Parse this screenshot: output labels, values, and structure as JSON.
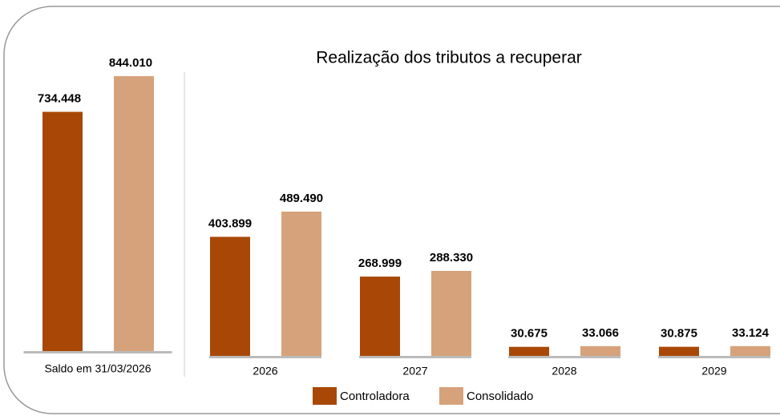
{
  "chart_data": [
    {
      "type": "bar",
      "categories": [
        "Saldo em 31/03/2026"
      ],
      "series": [
        {
          "color": "#a94806",
          "values": [
            734448
          ],
          "value_labels": [
            "734.448"
          ]
        },
        {
          "color": "#d6a27b",
          "values": [
            844010
          ],
          "value_labels": [
            "844.010"
          ]
        }
      ]
    },
    {
      "type": "bar",
      "title": "Realização dos tributos a recuperar",
      "categories": [
        "2026",
        "2027",
        "2028",
        "2029"
      ],
      "series": [
        {
          "name": "Controladora",
          "color": "#a94806",
          "values": [
            403899,
            268999,
            30675,
            30875
          ],
          "value_labels": [
            "403.899",
            "268.999",
            "30.675",
            "30.875"
          ]
        },
        {
          "name": "Consolidado",
          "color": "#d6a27b",
          "values": [
            489490,
            288330,
            33066,
            33124
          ],
          "value_labels": [
            "489.490",
            "288.330",
            "33.066",
            "33.124"
          ]
        }
      ],
      "legend": "bottom"
    }
  ]
}
